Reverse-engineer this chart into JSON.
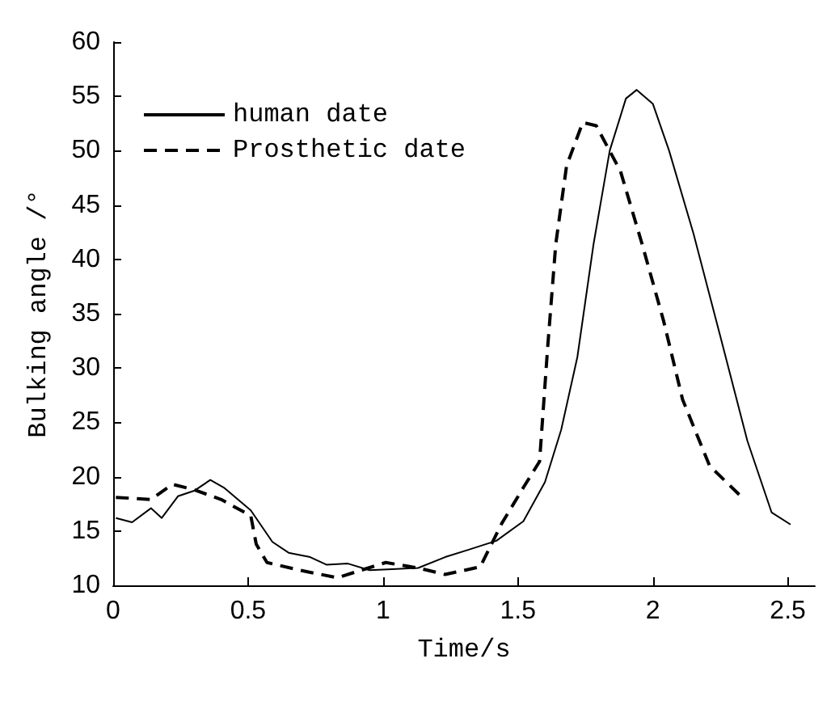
{
  "chart_data": {
    "type": "line",
    "xlabel": "Time/s",
    "ylabel": "Bulking angle /°",
    "legend": "top left",
    "grid": false,
    "marker": "none",
    "xlim": [
      0,
      2.6
    ],
    "xticks": [
      0,
      0.5,
      1,
      1.5,
      2,
      2.5
    ],
    "ylim": [
      10,
      60
    ],
    "yticks": [
      10,
      15,
      20,
      25,
      30,
      35,
      40,
      45,
      50,
      55,
      60
    ],
    "series": [
      {
        "name": "human date",
        "color": "#000000",
        "line_style": "solid",
        "x": [
          0.01,
          0.07,
          0.14,
          0.18,
          0.24,
          0.3,
          0.36,
          0.41,
          0.51,
          0.59,
          0.65,
          0.73,
          0.79,
          0.87,
          0.95,
          1.05,
          1.13,
          1.23,
          1.32,
          1.42,
          1.52,
          1.6,
          1.66,
          1.72,
          1.78,
          1.84,
          1.9,
          1.94,
          2.0,
          2.06,
          2.15,
          2.25,
          2.35,
          2.44,
          2.51
        ],
        "values": [
          16.2,
          15.8,
          17.1,
          16.2,
          18.2,
          18.7,
          19.7,
          19.0,
          16.9,
          14.0,
          13.0,
          12.6,
          11.9,
          12.0,
          11.4,
          11.5,
          11.6,
          12.6,
          13.3,
          14.1,
          15.9,
          19.5,
          24.3,
          31.0,
          41.4,
          50.0,
          54.8,
          55.6,
          54.3,
          50.0,
          42.4,
          32.9,
          23.3,
          16.7,
          15.6
        ]
      },
      {
        "name": "Prosthetic date",
        "color": "#000000",
        "line_style": "dashed",
        "x": [
          0.01,
          0.14,
          0.22,
          0.3,
          0.4,
          0.51,
          0.53,
          0.57,
          0.69,
          0.83,
          1.01,
          1.13,
          1.23,
          1.36,
          1.44,
          1.52,
          1.58,
          1.61,
          1.64,
          1.68,
          1.74,
          1.79,
          1.88,
          1.96,
          2.04,
          2.11,
          2.21,
          2.33
        ],
        "values": [
          18.1,
          17.9,
          19.3,
          18.8,
          17.9,
          16.4,
          13.8,
          12.1,
          11.4,
          10.7,
          12.1,
          11.6,
          11.0,
          11.7,
          15.7,
          19.0,
          21.4,
          31.9,
          41.4,
          48.6,
          52.6,
          52.3,
          48.1,
          41.4,
          34.3,
          27.1,
          21.0,
          18.1
        ]
      }
    ]
  }
}
